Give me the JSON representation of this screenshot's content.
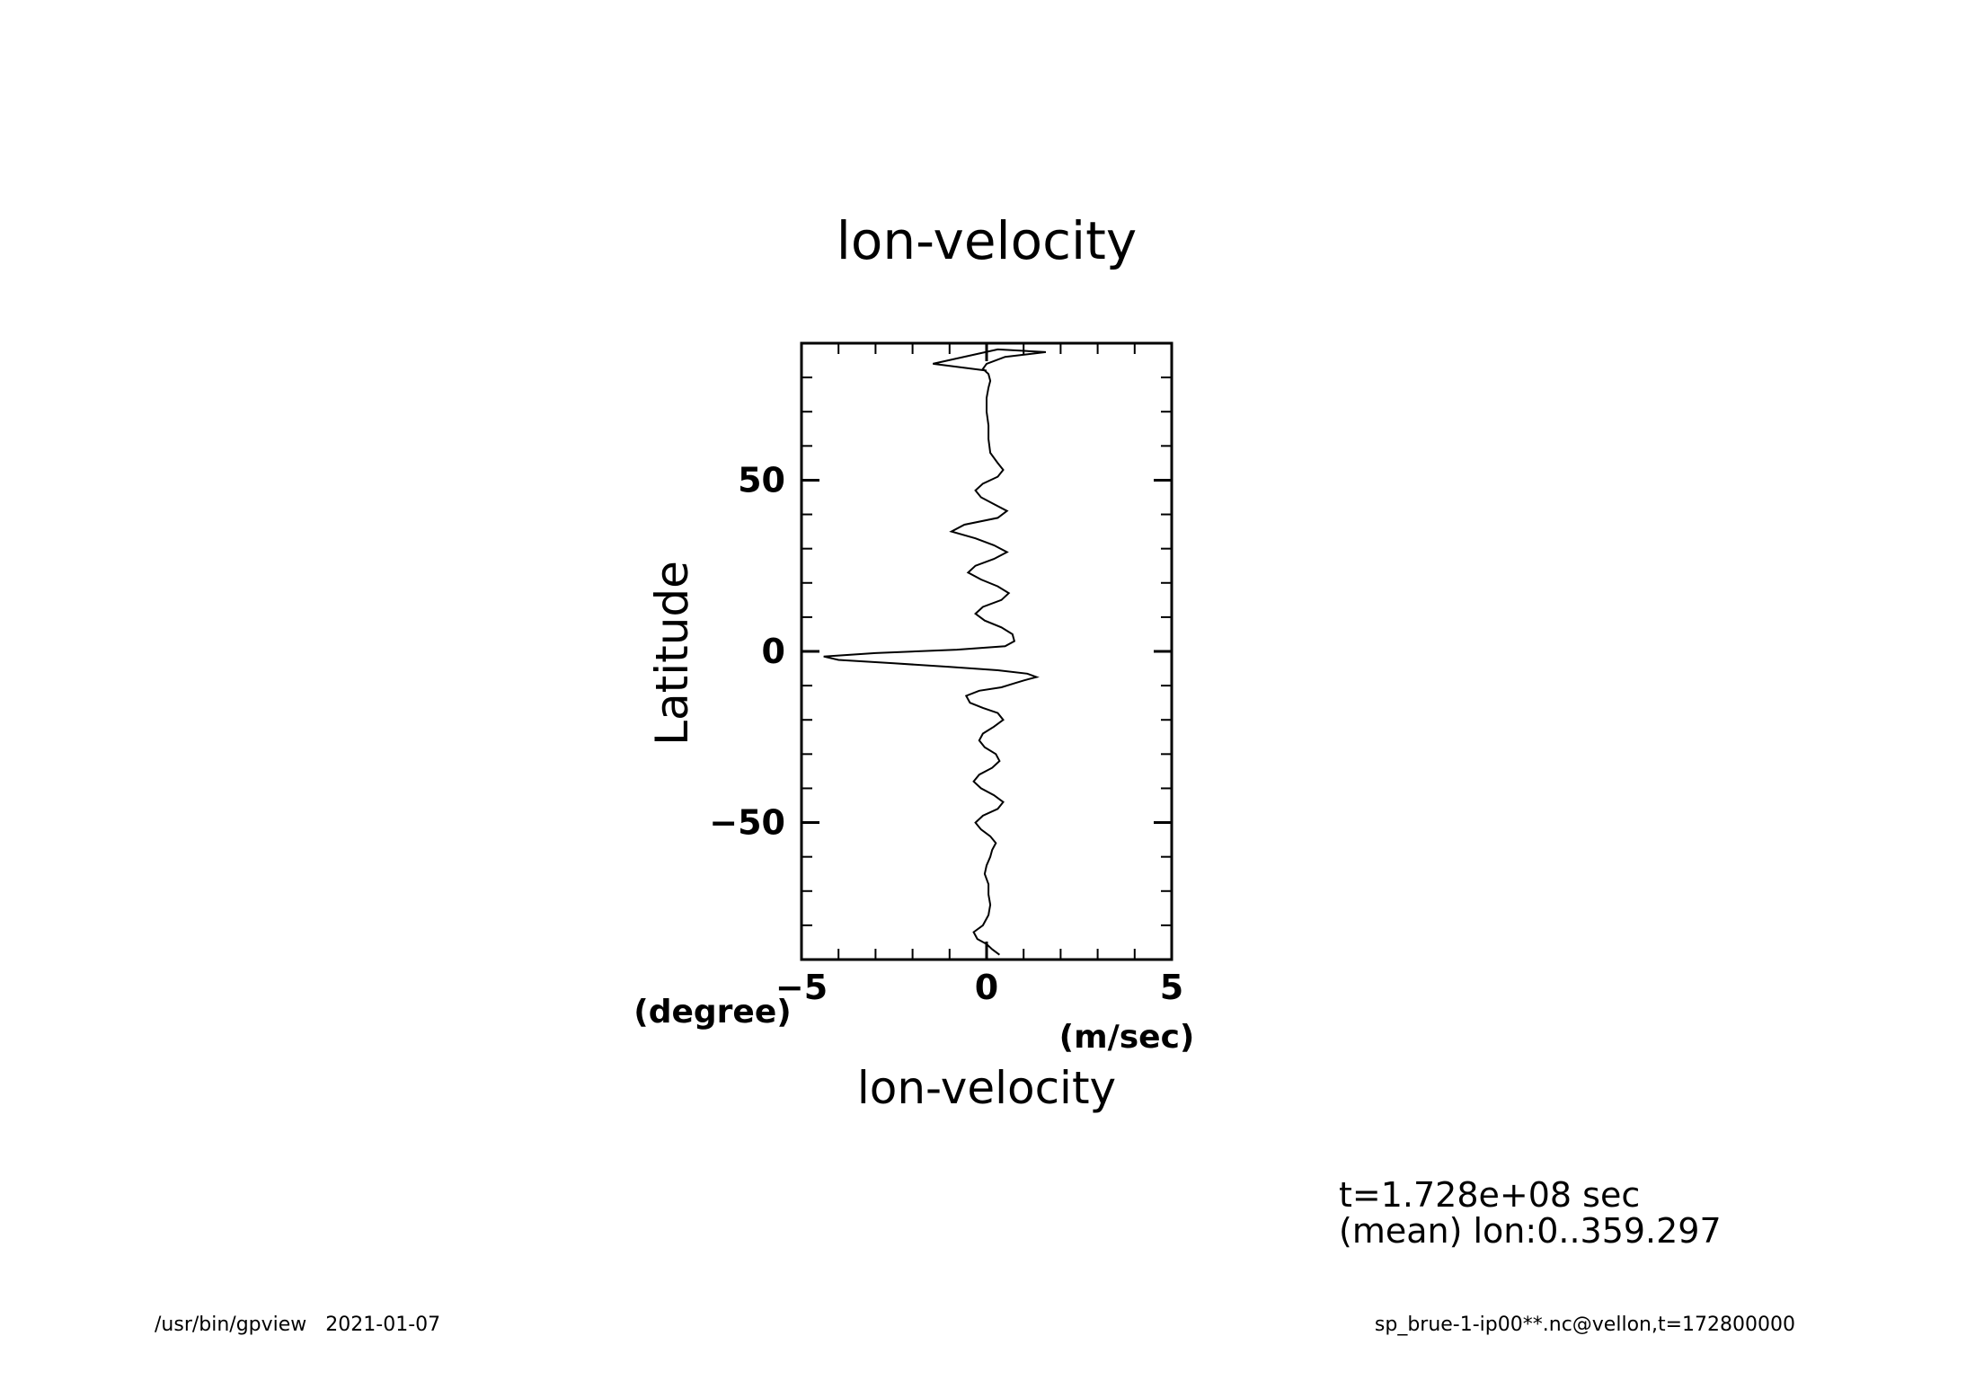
{
  "footer": {
    "left": "/usr/bin/gpview   2021-01-07",
    "right": "sp_brue-1-ip00**.nc@vellon,t=172800000"
  },
  "annotation": {
    "line1": "t=1.728e+08 sec",
    "line2": "(mean) lon:0..359.297"
  },
  "chart_data": {
    "type": "line",
    "title": "lon-velocity",
    "xlabel": "lon-velocity",
    "xunit": "(m/sec)",
    "ylabel": "Latitude",
    "yunit": "(degree)",
    "xlim": [
      -5,
      5
    ],
    "ylim": [
      -90,
      90
    ],
    "xticks": [
      -5,
      0,
      5
    ],
    "xtick_labels": [
      "−5",
      "0",
      "5"
    ],
    "yticks": [
      -50,
      0,
      50
    ],
    "ytick_labels": [
      "−50",
      "0",
      "50"
    ],
    "grid": false,
    "series": [
      {
        "x": [
          0.35,
          0.15,
          0.0,
          -0.25,
          -0.35,
          -0.1,
          0.05,
          0.1,
          0.05,
          0.05,
          -0.05,
          0.0,
          0.1,
          0.15,
          0.25,
          0.1,
          -0.15,
          -0.3,
          -0.1,
          0.3,
          0.45,
          0.2,
          -0.15,
          -0.35,
          -0.2,
          0.15,
          0.35,
          0.25,
          -0.05,
          -0.2,
          -0.1,
          0.2,
          0.45,
          0.3,
          -0.1,
          -0.45,
          -0.55,
          -0.2,
          0.4,
          0.7,
          1.0,
          1.35,
          1.1,
          0.3,
          -1.0,
          -2.5,
          -4.0,
          -4.4,
          -3.0,
          -0.8,
          0.5,
          0.75,
          0.7,
          0.4,
          -0.05,
          -0.3,
          -0.1,
          0.4,
          0.6,
          0.3,
          -0.15,
          -0.5,
          -0.3,
          0.2,
          0.55,
          0.2,
          -0.3,
          -0.95,
          -0.6,
          0.3,
          0.55,
          0.2,
          -0.15,
          -0.3,
          -0.1,
          0.3,
          0.45,
          0.3,
          0.1,
          0.05,
          0.05,
          0.0,
          0.0,
          0.05,
          0.1,
          0.05,
          -0.1,
          0.0,
          0.5,
          1.6,
          0.3,
          -1.45,
          0.0
        ],
        "y": [
          -88.6,
          -87.0,
          -85.5,
          -84.0,
          -82.0,
          -80.0,
          -77.0,
          -74.0,
          -71.0,
          -68.0,
          -65.0,
          -62.5,
          -60.0,
          -58.0,
          -56.0,
          -54.0,
          -52.0,
          -50.0,
          -48.0,
          -46.0,
          -44.0,
          -42.0,
          -40.0,
          -38.0,
          -36.0,
          -34.0,
          -32.0,
          -30.0,
          -28.0,
          -26.0,
          -24.0,
          -22.0,
          -20.0,
          -18.0,
          -16.5,
          -15.0,
          -13.0,
          -11.5,
          -10.5,
          -9.5,
          -8.5,
          -7.5,
          -6.5,
          -5.5,
          -4.5,
          -3.5,
          -2.5,
          -1.5,
          -0.5,
          0.5,
          1.5,
          3.0,
          5.0,
          7.0,
          9.0,
          11.0,
          13.0,
          15.0,
          17.0,
          19.0,
          21.0,
          23.0,
          25.0,
          27.0,
          29.0,
          31.0,
          33.0,
          35.0,
          37.0,
          39.0,
          41.0,
          43.0,
          45.0,
          47.0,
          49.0,
          51.0,
          53.0,
          55.0,
          58.0,
          62.0,
          66.0,
          70.0,
          74.0,
          77.0,
          79.0,
          81.0,
          82.5,
          84.0,
          86.0,
          87.4,
          88.2,
          84.0,
          82.0
        ]
      }
    ]
  }
}
